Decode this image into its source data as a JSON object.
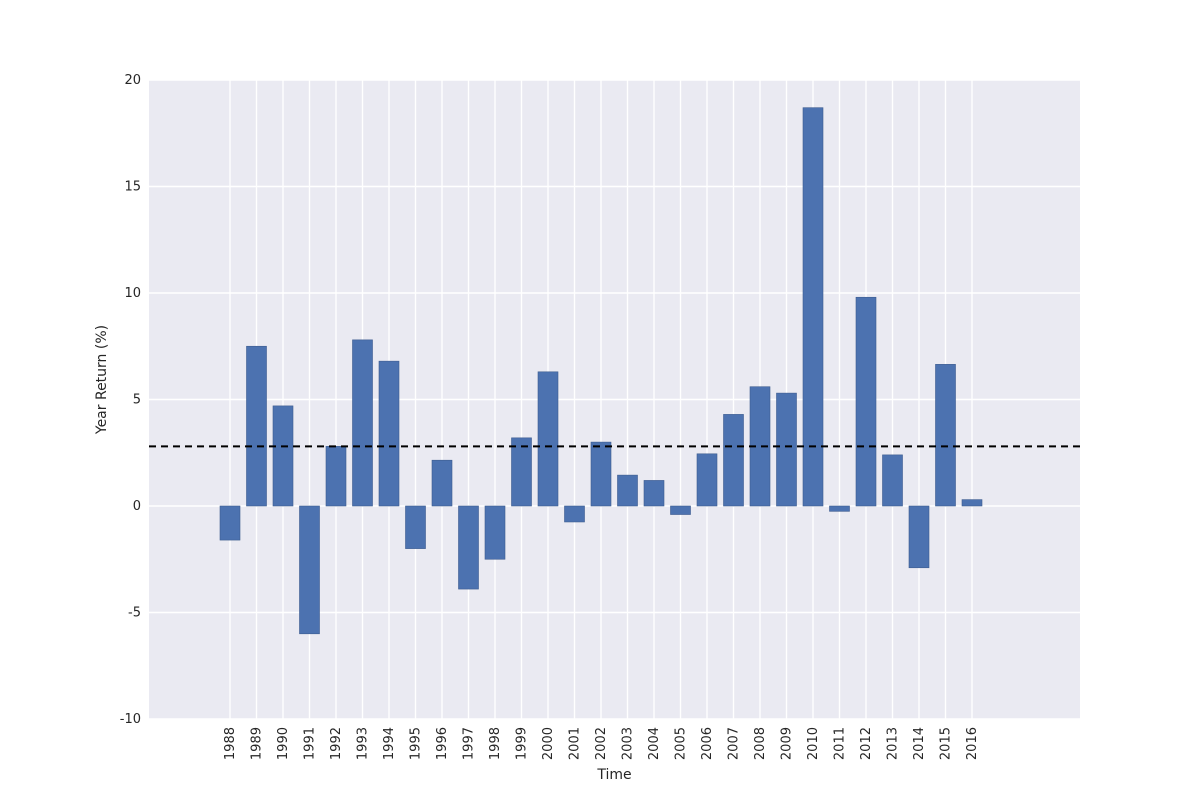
{
  "chart_data": {
    "type": "bar",
    "title": "",
    "xlabel": "Time",
    "ylabel": "Year Return (%)",
    "ylim": [
      -10,
      20
    ],
    "yticks": [
      -10,
      -5,
      0,
      5,
      10,
      15,
      20
    ],
    "grid": true,
    "bar_color": "#4c72b0",
    "background_color": "#eaeaf2",
    "reference_line": {
      "style": "dashed",
      "color": "#000000",
      "value": 2.8
    },
    "categories": [
      "1988",
      "1989",
      "1990",
      "1991",
      "1992",
      "1993",
      "1994",
      "1995",
      "1996",
      "1997",
      "1998",
      "1999",
      "2000",
      "2001",
      "2002",
      "2003",
      "2004",
      "2005",
      "2006",
      "2007",
      "2008",
      "2009",
      "2010",
      "2011",
      "2012",
      "2013",
      "2014",
      "2015",
      "2016"
    ],
    "values": [
      -1.6,
      7.5,
      4.7,
      -6.0,
      2.8,
      7.8,
      6.8,
      -2.0,
      2.15,
      -3.9,
      -2.5,
      3.2,
      6.3,
      -0.75,
      3.0,
      1.45,
      1.2,
      -0.4,
      2.45,
      4.3,
      5.6,
      5.3,
      18.7,
      -0.25,
      9.8,
      2.4,
      -2.9,
      6.65,
      0.3
    ]
  }
}
